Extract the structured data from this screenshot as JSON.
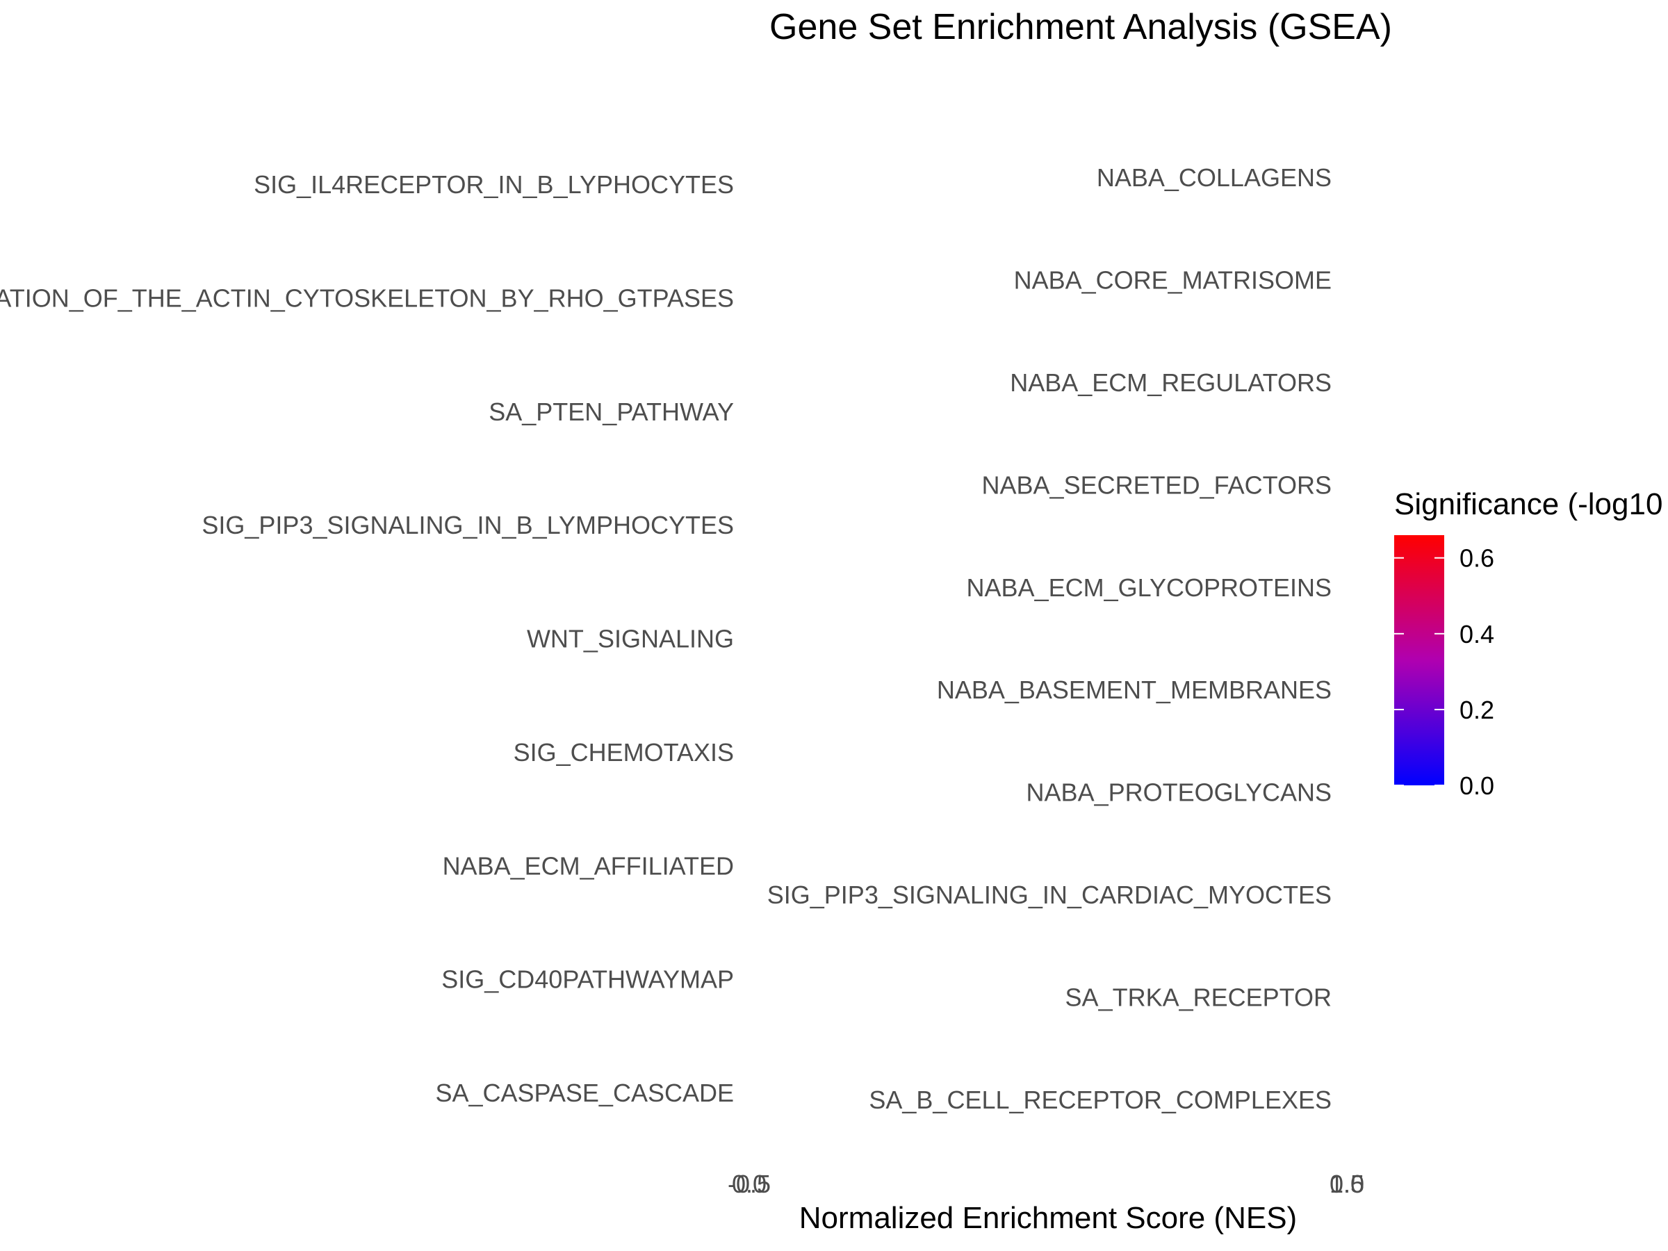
{
  "chart_data": {
    "type": "bar",
    "title": "Gene Set Enrichment Analysis (GSEA)",
    "xlabel": "Normalized Enrichment Score (NES)",
    "ylabel": "",
    "left_panel": {
      "categories": [
        "SIG_IL4RECEPTOR_IN_B_LYPHOCYTES",
        "ATION_OF_THE_ACTIN_CYTOSKELETON_BY_RHO_GTPASES",
        "SA_PTEN_PATHWAY",
        "SIG_PIP3_SIGNALING_IN_B_LYMPHOCYTES",
        "WNT_SIGNALING",
        "SIG_CHEMOTAXIS",
        "NABA_ECM_AFFILIATED",
        "SIG_CD40PATHWAYMAP",
        "SA_CASPASE_CASCADE"
      ],
      "x_tick_labels": [
        "-0.5",
        "0.0"
      ]
    },
    "right_panel": {
      "categories": [
        "NABA_COLLAGENS",
        "NABA_CORE_MATRISOME",
        "NABA_ECM_REGULATORS",
        "NABA_SECRETED_FACTORS",
        "NABA_ECM_GLYCOPROTEINS",
        "NABA_BASEMENT_MEMBRANES",
        "NABA_PROTEOGLYCANS",
        "SIG_PIP3_SIGNALING_IN_CARDIAC_MYOCTES",
        "SA_TRKA_RECEPTOR",
        "SA_B_CELL_RECEPTOR_COMPLEXES"
      ],
      "x_tick_labels": [
        "0.0",
        "1.5"
      ]
    },
    "legend": {
      "title": "Significance (-log10",
      "placement": "right",
      "ticks": [
        0.0,
        0.2,
        0.4,
        0.6
      ],
      "tick_labels": [
        "0.0",
        "0.2",
        "0.4",
        "0.6"
      ],
      "range": [
        0.0,
        0.66
      ],
      "color_low": "#0000ff",
      "color_high": "#ff0000"
    },
    "grid": false
  }
}
